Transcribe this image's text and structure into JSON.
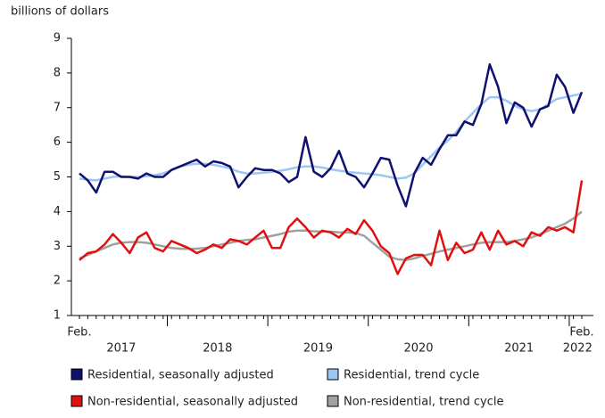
{
  "chart_data": {
    "type": "line",
    "y_axis_label": "billions of dollars",
    "x": [
      "2017-02",
      "2017-03",
      "2017-04",
      "2017-05",
      "2017-06",
      "2017-07",
      "2017-08",
      "2017-09",
      "2017-10",
      "2017-11",
      "2017-12",
      "2018-01",
      "2018-02",
      "2018-03",
      "2018-04",
      "2018-05",
      "2018-06",
      "2018-07",
      "2018-08",
      "2018-09",
      "2018-10",
      "2018-11",
      "2018-12",
      "2019-01",
      "2019-02",
      "2019-03",
      "2019-04",
      "2019-05",
      "2019-06",
      "2019-07",
      "2019-08",
      "2019-09",
      "2019-10",
      "2019-11",
      "2019-12",
      "2020-01",
      "2020-02",
      "2020-03",
      "2020-04",
      "2020-05",
      "2020-06",
      "2020-07",
      "2020-08",
      "2020-09",
      "2020-10",
      "2020-11",
      "2020-12",
      "2021-01",
      "2021-02",
      "2021-03",
      "2021-04",
      "2021-05",
      "2021-06",
      "2021-07",
      "2021-08",
      "2021-09",
      "2021-10",
      "2021-11",
      "2021-12",
      "2022-01",
      "2022-02"
    ],
    "month_labels": [
      "Feb.",
      "Feb."
    ],
    "year_labels": [
      "2017",
      "2018",
      "2019",
      "2020",
      "2021",
      "2022"
    ],
    "ylim": [
      1,
      9
    ],
    "yticks": [
      1,
      2,
      3,
      4,
      5,
      6,
      7,
      8,
      9
    ],
    "series": [
      {
        "name": "Residential, seasonally adjusted",
        "color": "#10106e",
        "values": [
          5.1,
          4.9,
          4.55,
          5.15,
          5.15,
          5.0,
          5.0,
          4.95,
          5.1,
          5.0,
          5.0,
          5.2,
          5.3,
          5.4,
          5.5,
          5.3,
          5.45,
          5.4,
          5.3,
          4.7,
          5.0,
          5.25,
          5.2,
          5.2,
          5.1,
          4.85,
          5.0,
          6.15,
          5.15,
          5.0,
          5.25,
          5.75,
          5.1,
          5.0,
          4.7,
          5.1,
          5.55,
          5.5,
          4.75,
          4.15,
          5.1,
          5.55,
          5.35,
          5.8,
          6.2,
          6.2,
          6.6,
          6.5,
          7.1,
          8.25,
          7.6,
          6.55,
          7.15,
          7.0,
          6.45,
          6.95,
          7.05,
          7.95,
          7.6,
          6.85,
          7.45
        ]
      },
      {
        "name": "Residential, trend cycle",
        "color": "#9dc6f2",
        "values": [
          4.95,
          4.92,
          4.9,
          4.95,
          5.0,
          5.02,
          5.0,
          5.0,
          5.02,
          5.05,
          5.1,
          5.2,
          5.3,
          5.35,
          5.38,
          5.38,
          5.35,
          5.3,
          5.25,
          5.15,
          5.1,
          5.1,
          5.12,
          5.15,
          5.18,
          5.22,
          5.28,
          5.3,
          5.3,
          5.27,
          5.22,
          5.18,
          5.15,
          5.12,
          5.1,
          5.08,
          5.05,
          5.0,
          4.95,
          4.98,
          5.1,
          5.35,
          5.6,
          5.85,
          6.05,
          6.3,
          6.6,
          6.85,
          7.1,
          7.3,
          7.3,
          7.2,
          7.05,
          6.95,
          6.9,
          6.95,
          7.1,
          7.25,
          7.3,
          7.35,
          7.4
        ]
      },
      {
        "name": "Non-residential, seasonally adjusted",
        "color": "#e01010",
        "values": [
          2.6,
          2.8,
          2.85,
          3.05,
          3.35,
          3.1,
          2.8,
          3.25,
          3.4,
          2.95,
          2.85,
          3.15,
          3.05,
          2.95,
          2.8,
          2.9,
          3.05,
          2.95,
          3.2,
          3.15,
          3.05,
          3.25,
          3.45,
          2.95,
          2.95,
          3.55,
          3.8,
          3.55,
          3.25,
          3.45,
          3.4,
          3.25,
          3.5,
          3.35,
          3.75,
          3.45,
          3.0,
          2.8,
          2.2,
          2.65,
          2.75,
          2.75,
          2.45,
          3.45,
          2.6,
          3.1,
          2.8,
          2.9,
          3.4,
          2.9,
          3.45,
          3.05,
          3.15,
          3.0,
          3.4,
          3.3,
          3.55,
          3.45,
          3.55,
          3.4,
          4.9
        ]
      },
      {
        "name": "Non-residential, trend cycle",
        "color": "#a0a0a0",
        "values": [
          2.65,
          2.75,
          2.85,
          2.95,
          3.05,
          3.1,
          3.12,
          3.12,
          3.1,
          3.05,
          3.0,
          2.95,
          2.93,
          2.92,
          2.93,
          2.95,
          3.0,
          3.05,
          3.1,
          3.15,
          3.18,
          3.2,
          3.25,
          3.3,
          3.35,
          3.42,
          3.45,
          3.45,
          3.43,
          3.42,
          3.42,
          3.4,
          3.4,
          3.38,
          3.3,
          3.1,
          2.9,
          2.7,
          2.62,
          2.6,
          2.65,
          2.72,
          2.78,
          2.85,
          2.9,
          2.95,
          3.0,
          3.05,
          3.1,
          3.12,
          3.12,
          3.12,
          3.15,
          3.2,
          3.25,
          3.35,
          3.45,
          3.55,
          3.65,
          3.8,
          4.0
        ]
      }
    ]
  }
}
